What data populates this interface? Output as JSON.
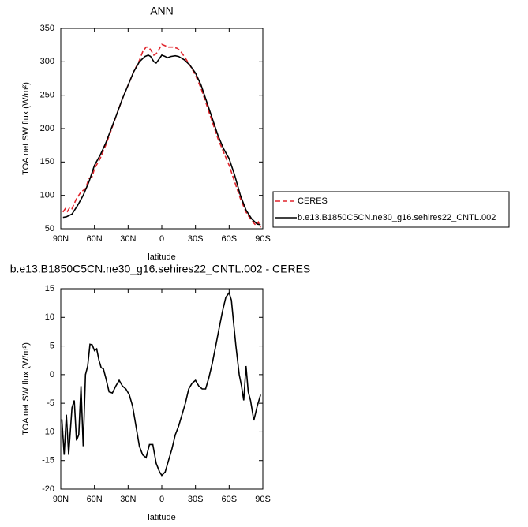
{
  "chart_data": [
    {
      "type": "line",
      "title": "ANN",
      "xlabel": "latitude",
      "ylabel": "TOA net SW flux (W/m²)",
      "xlim": [
        90,
        -90
      ],
      "xticks": [
        {
          "value": 90,
          "label": "90N"
        },
        {
          "value": 60,
          "label": "60N"
        },
        {
          "value": 30,
          "label": "30N"
        },
        0,
        {
          "value": -30,
          "label": "30S"
        },
        {
          "value": -60,
          "label": "60S"
        },
        {
          "value": -90,
          "label": "90S"
        }
      ],
      "ylim": [
        50,
        350
      ],
      "yticks": [
        50,
        100,
        150,
        200,
        250,
        300,
        350
      ],
      "legend": "right",
      "series": [
        {
          "name": "CERES",
          "color": "#e0242b",
          "dashed": true,
          "x": [
            88,
            86,
            84,
            82,
            80,
            76,
            72,
            68,
            65,
            62,
            60,
            55,
            50,
            45,
            40,
            35,
            30,
            25,
            20,
            17,
            14,
            12,
            10,
            7,
            5,
            2,
            0,
            -3,
            -6,
            -10,
            -14,
            -17,
            -20,
            -25,
            -30,
            -35,
            -40,
            -45,
            -50,
            -55,
            -60,
            -65,
            -70,
            -75,
            -80,
            -84,
            -86,
            -88
          ],
          "values": [
            75,
            80,
            76,
            82,
            80,
            95,
            105,
            110,
            125,
            128,
            140,
            155,
            175,
            198,
            222,
            245,
            265,
            285,
            302,
            315,
            322,
            322,
            318,
            310,
            312,
            320,
            326,
            324,
            322,
            322,
            320,
            315,
            308,
            295,
            280,
            260,
            235,
            210,
            185,
            165,
            145,
            120,
            95,
            75,
            62,
            55,
            60,
            52
          ]
        },
        {
          "name": "b.e13.B1850C5CN.ne30_g16.sehires22_CNTL.002",
          "color": "#000000",
          "dashed": false,
          "x": [
            88,
            85,
            80,
            75,
            70,
            65,
            60,
            55,
            50,
            45,
            40,
            35,
            30,
            25,
            20,
            15,
            12,
            10,
            7,
            5,
            2,
            0,
            -3,
            -5,
            -8,
            -12,
            -15,
            -20,
            -25,
            -30,
            -35,
            -40,
            -45,
            -50,
            -55,
            -60,
            -65,
            -70,
            -75,
            -80,
            -85,
            -88
          ],
          "values": [
            67,
            68,
            72,
            85,
            100,
            120,
            145,
            160,
            178,
            200,
            222,
            245,
            265,
            285,
            300,
            308,
            310,
            308,
            300,
            298,
            305,
            310,
            308,
            306,
            308,
            309,
            308,
            303,
            295,
            283,
            265,
            240,
            215,
            190,
            170,
            155,
            130,
            100,
            78,
            65,
            57,
            56
          ]
        }
      ]
    },
    {
      "type": "line",
      "title": "b.e13.B1850C5CN.ne30_g16.sehires22_CNTL.002 - CERES",
      "xlabel": "latitude",
      "ylabel": "TOA net SW flux (W/m²)",
      "xlim": [
        90,
        -90
      ],
      "xticks": [
        {
          "value": 90,
          "label": "90N"
        },
        {
          "value": 60,
          "label": "60N"
        },
        {
          "value": 30,
          "label": "30N"
        },
        0,
        {
          "value": -30,
          "label": "30S"
        },
        {
          "value": -60,
          "label": "60S"
        },
        {
          "value": -90,
          "label": "90S"
        }
      ],
      "ylim": [
        -20,
        15
      ],
      "yticks": [
        -20,
        -15,
        -10,
        -5,
        0,
        5,
        10,
        15
      ],
      "color": "#000000",
      "x": [
        89,
        87,
        85,
        83,
        80,
        78,
        76,
        74,
        72,
        70,
        68,
        66,
        64,
        62,
        60,
        58,
        56,
        54,
        52,
        50,
        47,
        44,
        41,
        38,
        35,
        32,
        29,
        26,
        23,
        20,
        17,
        14,
        11,
        8,
        5,
        2,
        0,
        -3,
        -6,
        -9,
        -12,
        -15,
        -18,
        -21,
        -24,
        -27,
        -30,
        -33,
        -36,
        -39,
        -42,
        -45,
        -48,
        -51,
        -54,
        -57,
        -60,
        -62,
        -64,
        -66,
        -69,
        -71,
        -73,
        -75,
        -77,
        -79,
        -82,
        -85,
        -88
      ],
      "values": [
        -7.8,
        -14,
        -7,
        -14,
        -5.8,
        -4.5,
        -11.5,
        -10.5,
        -2,
        -12.5,
        0,
        1.5,
        5.3,
        5.2,
        4.2,
        4.5,
        2.5,
        1.2,
        1,
        -0.5,
        -3,
        -3.2,
        -2,
        -1,
        -2,
        -2.5,
        -3.5,
        -5.5,
        -9,
        -12.5,
        -14,
        -14.5,
        -12.2,
        -12.2,
        -15.5,
        -17,
        -17.6,
        -17,
        -15,
        -13,
        -10.5,
        -9,
        -7,
        -5,
        -2.5,
        -1.5,
        -1,
        -2,
        -2.5,
        -2.5,
        -0.5,
        2,
        5,
        8,
        11,
        13.5,
        14.3,
        13,
        9,
        5,
        0,
        -2,
        -4.5,
        1.5,
        -3,
        -4.5,
        -8,
        -5.5,
        -3.5
      ]
    }
  ]
}
